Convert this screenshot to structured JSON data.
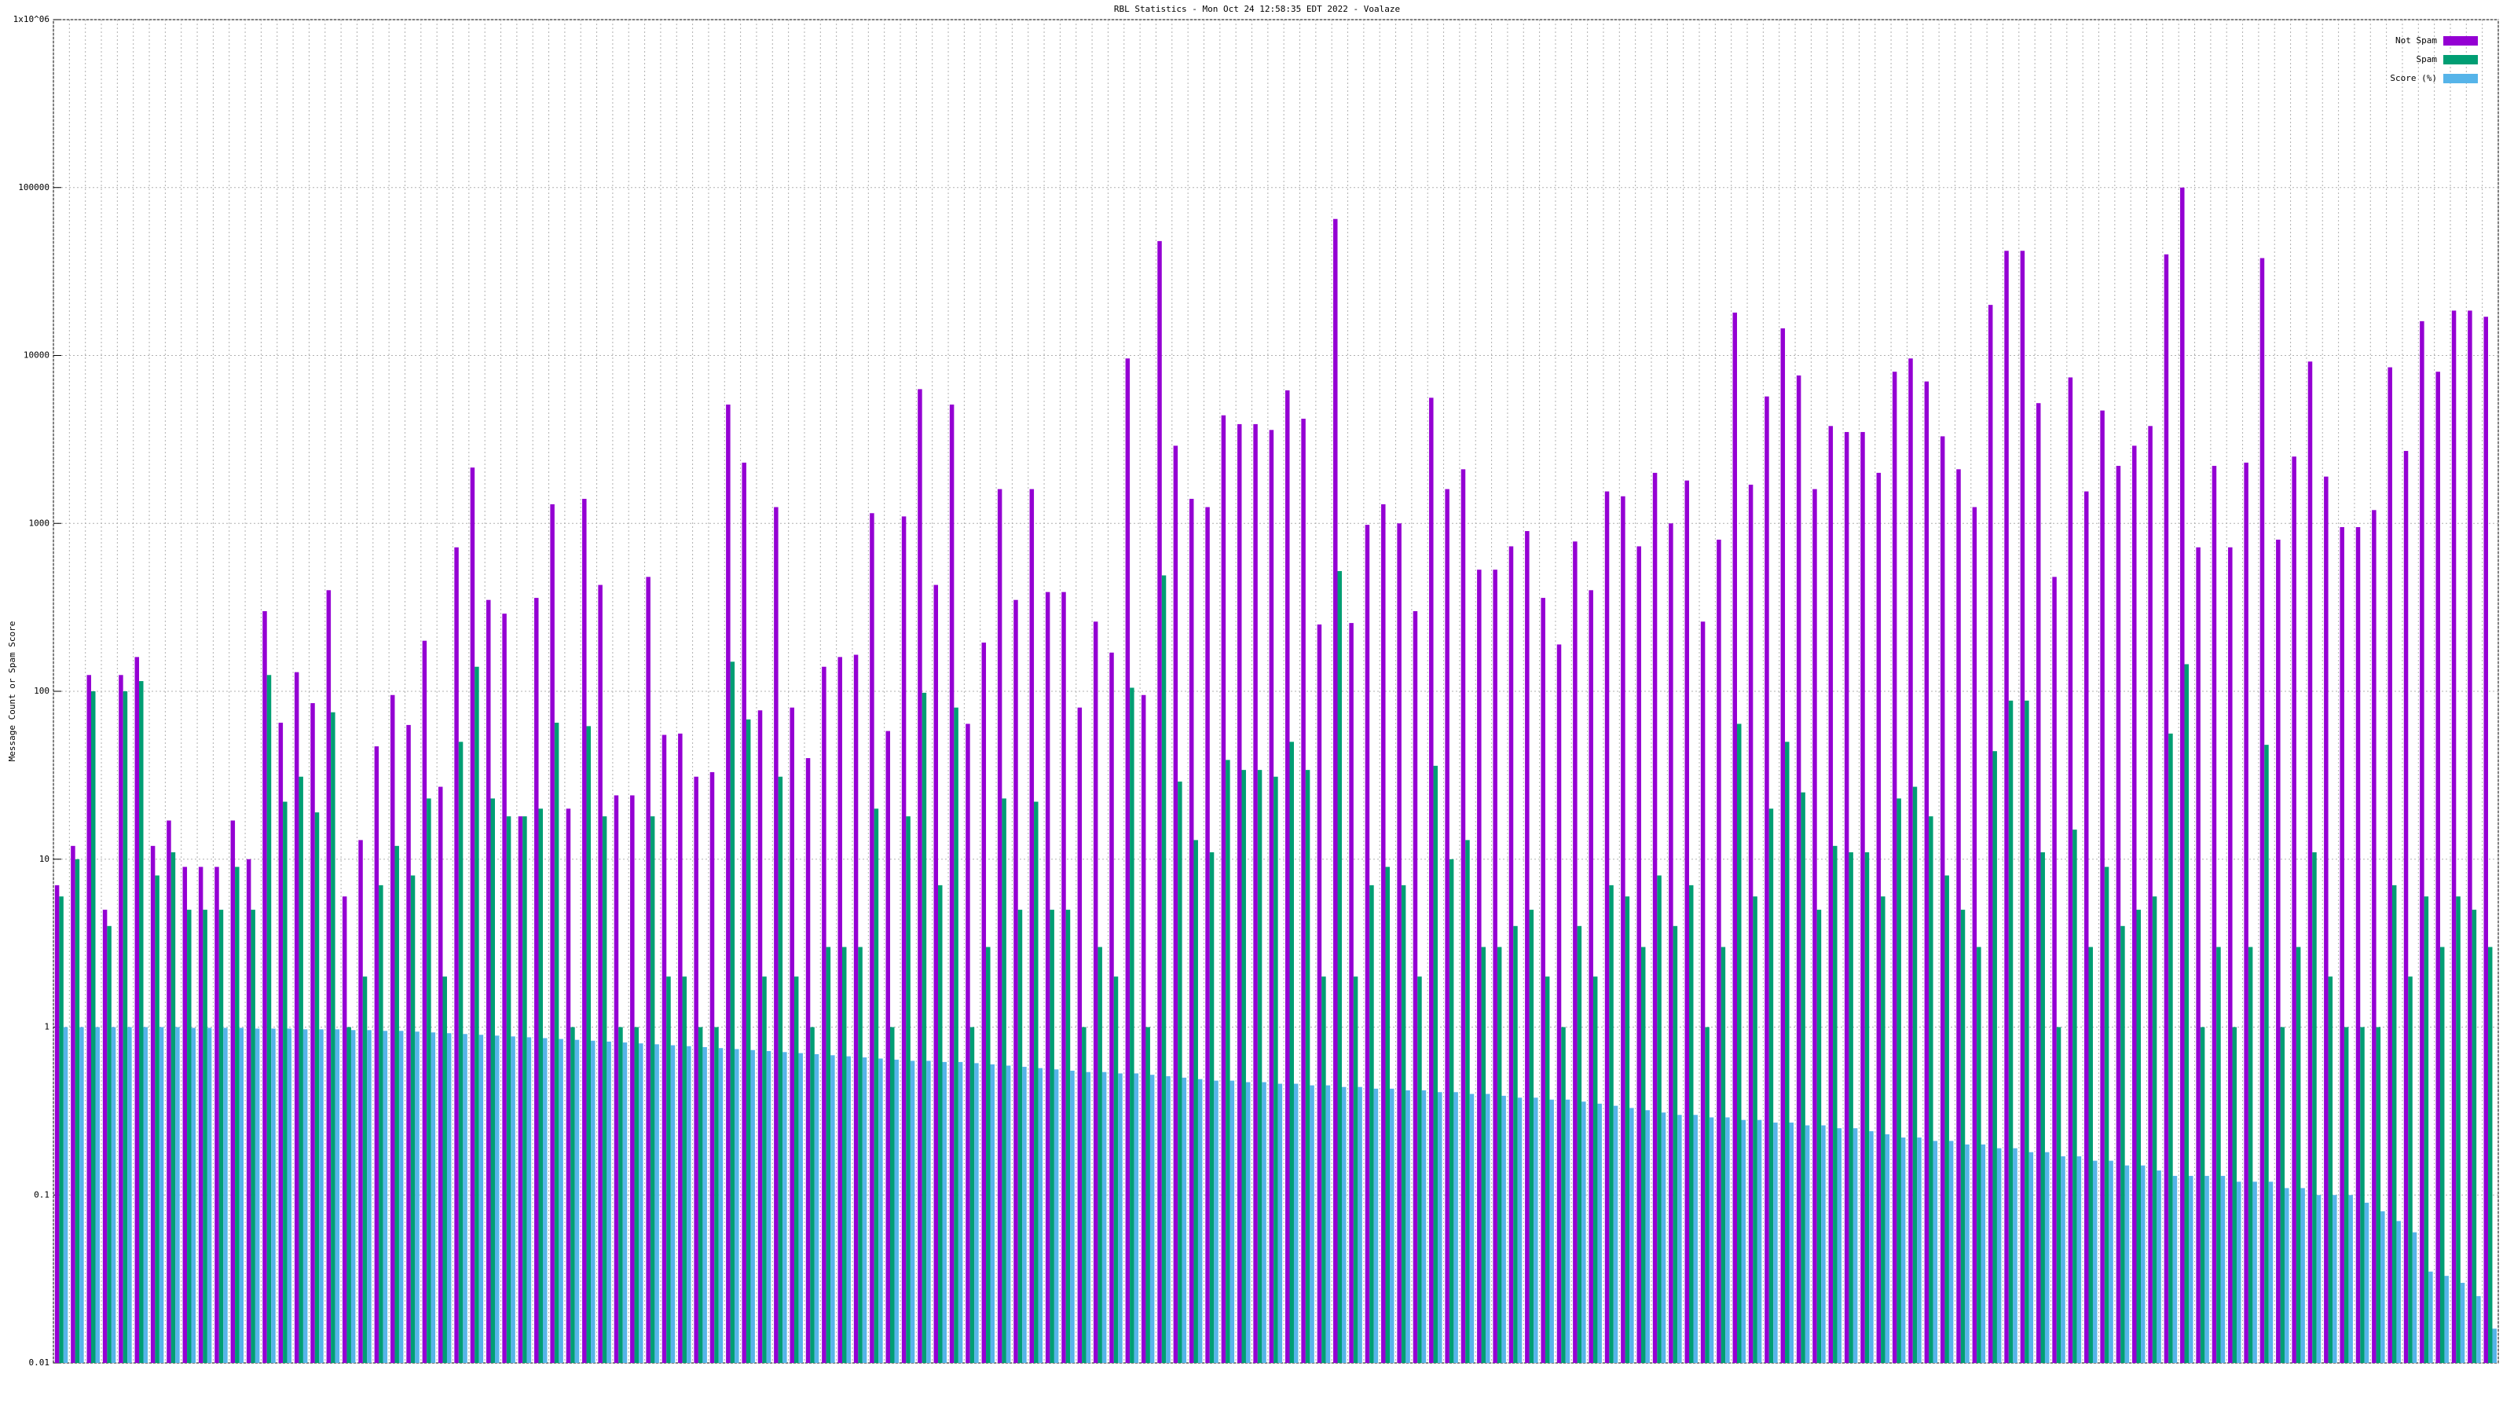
{
  "chart_data": {
    "type": "bar",
    "title": "RBL Statistics - Mon Oct 24 12:58:35 EDT 2022 - Voalaze",
    "y_label": "Message Count or Spam Score",
    "log_scale": true,
    "grid": true,
    "legend": "top-right",
    "ylim": [
      0.01,
      1000000
    ],
    "yticks": [
      0.01,
      0.1,
      1,
      10,
      100,
      1000,
      10000,
      100000,
      {
        "value": 1000000,
        "label": "1x10^06"
      }
    ],
    "series": [
      {
        "name": "Not Spam",
        "color": "#9400d3",
        "values": [
          7,
          12,
          125,
          5,
          125,
          160,
          12,
          17,
          9,
          9,
          9,
          17,
          10,
          300,
          65,
          130,
          85,
          400,
          6,
          13,
          47,
          95,
          63,
          200,
          27,
          720,
          2150,
          350,
          290,
          18,
          360,
          1300,
          20,
          1400,
          430,
          24,
          24,
          480,
          55,
          56,
          31,
          33,
          5100,
          2300,
          77,
          1250,
          80,
          40,
          140,
          160,
          165,
          1150,
          58,
          1100,
          6300,
          430,
          5100,
          64,
          195,
          1600,
          350,
          1600,
          390,
          390,
          80,
          260,
          170,
          9600,
          95,
          48000,
          2900,
          1400,
          1250,
          4400,
          3900,
          3900,
          3600,
          6200,
          4200,
          250,
          65000,
          255,
          980,
          1300,
          1000,
          300,
          5600,
          1600,
          2100,
          530,
          530,
          730,
          900,
          360,
          190,
          780,
          400,
          1550,
          1450,
          730,
          2000,
          1000,
          1800,
          260,
          800,
          18000,
          1700,
          5700,
          14500,
          7600,
          1600,
          3800,
          3500,
          3500,
          2000,
          8000,
          9600,
          7000,
          3300,
          2100,
          1250,
          20000,
          42000,
          42000,
          5200,
          480,
          7400,
          1550,
          4700,
          2200,
          2900,
          3800,
          40000,
          100000,
          720,
          2200,
          720,
          2300,
          38000,
          800,
          2500,
          9200,
          1900,
          950,
          950,
          1200,
          8500,
          2700,
          16000,
          8000,
          18500,
          18500,
          17000
        ]
      },
      {
        "name": "Spam",
        "color": "#009e73",
        "values": [
          6,
          10,
          100,
          4,
          100,
          115,
          8,
          11,
          5,
          5,
          5,
          9,
          5,
          125,
          22,
          31,
          19,
          75,
          1,
          2,
          7,
          12,
          8,
          23,
          2,
          50,
          140,
          23,
          18,
          18,
          20,
          65,
          1,
          62,
          18,
          1,
          1,
          18,
          2,
          2,
          1,
          1,
          150,
          68,
          2,
          31,
          2,
          1,
          3,
          3,
          3,
          20,
          1,
          18,
          98,
          7,
          80,
          1,
          3,
          23,
          5,
          22,
          5,
          5,
          1,
          3,
          2,
          105,
          1,
          490,
          29,
          13,
          11,
          39,
          34,
          34,
          31,
          50,
          34,
          2,
          520,
          2,
          7,
          9,
          7,
          2,
          36,
          10,
          13,
          3,
          3,
          4,
          5,
          2,
          1,
          4,
          2,
          7,
          6,
          3,
          8,
          4,
          7,
          1,
          3,
          64,
          6,
          20,
          50,
          25,
          5,
          12,
          11,
          11,
          6,
          23,
          27,
          18,
          8,
          5,
          3,
          44,
          88,
          88,
          11,
          1,
          15,
          3,
          9,
          4,
          5,
          6,
          56,
          145,
          1,
          3,
          1,
          3,
          48,
          1,
          3,
          11,
          2,
          1,
          1,
          1,
          7,
          2,
          6,
          3,
          6,
          5,
          3
        ]
      },
      {
        "name": "Score (%)",
        "color": "#56b4e9",
        "values": [
          1.0,
          1.0,
          1.0,
          1.0,
          1.0,
          1.0,
          1.0,
          1.0,
          0.99,
          0.99,
          0.99,
          0.99,
          0.98,
          0.98,
          0.98,
          0.97,
          0.97,
          0.97,
          0.96,
          0.96,
          0.95,
          0.95,
          0.94,
          0.93,
          0.92,
          0.91,
          0.9,
          0.89,
          0.88,
          0.87,
          0.86,
          0.85,
          0.84,
          0.83,
          0.82,
          0.81,
          0.8,
          0.79,
          0.78,
          0.77,
          0.76,
          0.75,
          0.74,
          0.73,
          0.72,
          0.71,
          0.7,
          0.69,
          0.68,
          0.67,
          0.66,
          0.65,
          0.64,
          0.63,
          0.63,
          0.62,
          0.62,
          0.61,
          0.6,
          0.59,
          0.58,
          0.57,
          0.56,
          0.55,
          0.54,
          0.54,
          0.53,
          0.53,
          0.52,
          0.51,
          0.5,
          0.49,
          0.48,
          0.48,
          0.47,
          0.47,
          0.46,
          0.46,
          0.45,
          0.45,
          0.44,
          0.44,
          0.43,
          0.43,
          0.42,
          0.42,
          0.41,
          0.41,
          0.4,
          0.4,
          0.39,
          0.38,
          0.38,
          0.37,
          0.37,
          0.36,
          0.35,
          0.34,
          0.33,
          0.32,
          0.31,
          0.3,
          0.3,
          0.29,
          0.29,
          0.28,
          0.28,
          0.27,
          0.27,
          0.26,
          0.26,
          0.25,
          0.25,
          0.24,
          0.23,
          0.22,
          0.22,
          0.21,
          0.21,
          0.2,
          0.2,
          0.19,
          0.19,
          0.18,
          0.18,
          0.17,
          0.17,
          0.16,
          0.16,
          0.15,
          0.15,
          0.14,
          0.13,
          0.13,
          0.13,
          0.13,
          0.12,
          0.12,
          0.12,
          0.11,
          0.11,
          0.1,
          0.1,
          0.1,
          0.09,
          0.08,
          0.07,
          0.06,
          0.035,
          0.033,
          0.03,
          0.025,
          0.016
        ]
      }
    ]
  }
}
